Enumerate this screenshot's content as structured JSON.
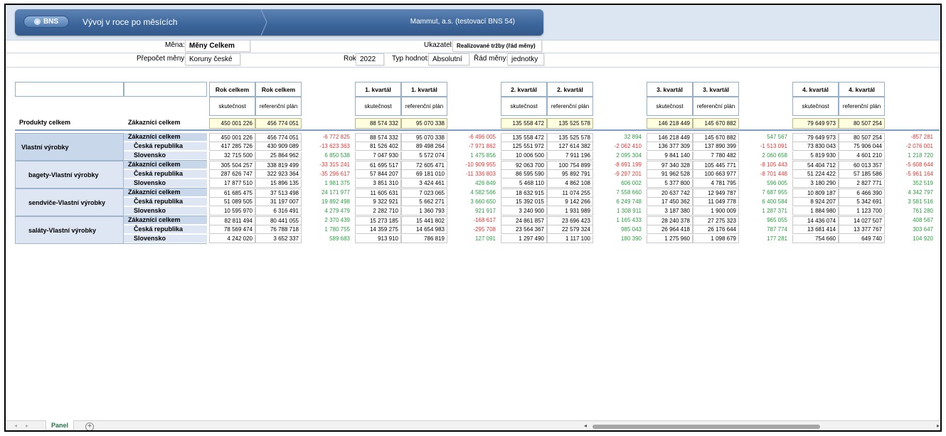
{
  "header": {
    "logo_text": "BNS",
    "title": "Vývoj v roce po měsících",
    "company": "Mammut, a.s. (testovací BNS 54)"
  },
  "params": {
    "mena_label": "Měna:",
    "mena_value": "Měny Celkem",
    "ukazatel_label": "Ukazatel:",
    "ukazatel_value": "Realizované tržby (řád měny)",
    "prepocet_label": "Přepočet měny:",
    "prepocet_value": "Koruny české",
    "rok_label": "Rok:",
    "rok_value": "2022",
    "typ_label": "Typ hodnot:",
    "typ_value": "Absolutní",
    "rad_label": "Řád měny:",
    "rad_value": "jednotky"
  },
  "periods": [
    {
      "h1": "Rok celkem",
      "h2": "Rok celkem",
      "a": "skutečnost",
      "b": "referenční plán",
      "total_a": "450 001 226",
      "total_b": "456 774 051"
    },
    {
      "h1": "1. kvartál",
      "h2": "1. kvartál",
      "a": "skutečnost",
      "b": "referenční plán",
      "total_a": "88 574 332",
      "total_b": "95 070 338"
    },
    {
      "h1": "2. kvartál",
      "h2": "2. kvartál",
      "a": "skutečnost",
      "b": "referenční plán",
      "total_a": "135 558 472",
      "total_b": "135 525 578"
    },
    {
      "h1": "3. kvartál",
      "h2": "3. kvartál",
      "a": "skutečnost",
      "b": "referenční plán",
      "total_a": "146 218 449",
      "total_b": "145 670 882"
    },
    {
      "h1": "4. kvartál",
      "h2": "4. kvartál",
      "a": "skutečnost",
      "b": "referenční plán",
      "total_a": "79 649 973",
      "total_b": "80 507 254"
    }
  ],
  "total_row": {
    "product": "Produkty celkem",
    "customer": "Zákazníci celkem"
  },
  "groups": [
    {
      "name": "Vlastní výrobky",
      "rows": [
        {
          "label": "Zákazníci celkem",
          "v": [
            [
              "450 001 226",
              "456 774 051",
              "-6 772 825"
            ],
            [
              "88 574 332",
              "95 070 338",
              "-6 496 005"
            ],
            [
              "135 558 472",
              "135 525 578",
              "32 894"
            ],
            [
              "146 218 449",
              "145 670 882",
              "547 567"
            ],
            [
              "79 649 973",
              "80 507 254",
              "-857 281"
            ]
          ]
        },
        {
          "label": "Česká republika",
          "v": [
            [
              "417 285 726",
              "430 909 089",
              "-13 623 363"
            ],
            [
              "81 526 402",
              "89 498 264",
              "-7 971 862"
            ],
            [
              "125 551 972",
              "127 614 382",
              "-2 062 410"
            ],
            [
              "136 377 309",
              "137 890 399",
              "-1 513 091"
            ],
            [
              "73 830 043",
              "75 906 044",
              "-2 076 001"
            ]
          ]
        },
        {
          "label": "Slovensko",
          "v": [
            [
              "32 715 500",
              "25 864 962",
              "6 850 538"
            ],
            [
              "7 047 930",
              "5 572 074",
              "1 475 856"
            ],
            [
              "10 006 500",
              "7 911 196",
              "2 095 304"
            ],
            [
              "9 841 140",
              "7 780 482",
              "2 060 658"
            ],
            [
              "5 819 930",
              "4 601 210",
              "1 218 720"
            ]
          ]
        }
      ]
    },
    {
      "name": "bagety-Vlastní výrobky",
      "rows": [
        {
          "label": "Zákazníci celkem",
          "v": [
            [
              "305 504 257",
              "338 819 499",
              "-33 315 241"
            ],
            [
              "61 695 517",
              "72 605 471",
              "-10 909 955"
            ],
            [
              "92 063 700",
              "100 754 899",
              "-8 691 199"
            ],
            [
              "97 340 328",
              "105 445 771",
              "-8 105 443"
            ],
            [
              "54 404 712",
              "60 013 357",
              "-5 608 644"
            ]
          ]
        },
        {
          "label": "Česká republika",
          "v": [
            [
              "287 626 747",
              "322 923 364",
              "-35 296 617"
            ],
            [
              "57 844 207",
              "69 181 010",
              "-11 336 803"
            ],
            [
              "86 595 590",
              "95 892 791",
              "-9 297 201"
            ],
            [
              "91 962 528",
              "100 663 977",
              "-8 701 448"
            ],
            [
              "51 224 422",
              "57 185 586",
              "-5 961 164"
            ]
          ]
        },
        {
          "label": "Slovensko",
          "v": [
            [
              "17 877 510",
              "15 896 135",
              "1 981 375"
            ],
            [
              "3 851 310",
              "3 424 461",
              "426 849"
            ],
            [
              "5 468 110",
              "4 862 108",
              "606 002"
            ],
            [
              "5 377 800",
              "4 781 795",
              "596 005"
            ],
            [
              "3 180 290",
              "2 827 771",
              "352 519"
            ]
          ]
        }
      ]
    },
    {
      "name": "sendviče-Vlastní výrobky",
      "rows": [
        {
          "label": "Zákazníci celkem",
          "v": [
            [
              "61 685 475",
              "37 513 498",
              "24 171 977"
            ],
            [
              "11 605 631",
              "7 023 065",
              "4 582 566"
            ],
            [
              "18 632 915",
              "11 074 255",
              "7 558 660"
            ],
            [
              "20 637 742",
              "12 949 787",
              "7 687 955"
            ],
            [
              "10 809 187",
              "6 466 390",
              "4 342 797"
            ]
          ]
        },
        {
          "label": "Česká republika",
          "v": [
            [
              "51 089 505",
              "31 197 007",
              "19 892 498"
            ],
            [
              "9 322 921",
              "5 662 271",
              "3 660 650"
            ],
            [
              "15 392 015",
              "9 142 266",
              "6 249 748"
            ],
            [
              "17 450 362",
              "11 049 778",
              "6 400 584"
            ],
            [
              "8 924 207",
              "5 342 691",
              "3 581 516"
            ]
          ]
        },
        {
          "label": "Slovensko",
          "v": [
            [
              "10 595 970",
              "6 316 491",
              "4 279 479"
            ],
            [
              "2 282 710",
              "1 360 793",
              "921 917"
            ],
            [
              "3 240 900",
              "1 931 989",
              "1 308 911"
            ],
            [
              "3 187 380",
              "1 900 009",
              "1 287 371"
            ],
            [
              "1 884 980",
              "1 123 700",
              "761 280"
            ]
          ]
        }
      ]
    },
    {
      "name": "saláty-Vlastní výrobky",
      "rows": [
        {
          "label": "Zákazníci celkem",
          "v": [
            [
              "82 811 494",
              "80 441 055",
              "2 370 439"
            ],
            [
              "15 273 185",
              "15 441 802",
              "-168 617"
            ],
            [
              "24 861 857",
              "23 696 423",
              "1 165 433"
            ],
            [
              "28 240 378",
              "27 275 323",
              "965 055"
            ],
            [
              "14 436 074",
              "14 027 507",
              "408 567"
            ]
          ]
        },
        {
          "label": "Česká republika",
          "v": [
            [
              "78 569 474",
              "76 788 718",
              "1 780 755"
            ],
            [
              "14 359 275",
              "14 654 983",
              "-295 708"
            ],
            [
              "23 564 367",
              "22 579 324",
              "985 043"
            ],
            [
              "26 964 418",
              "26 176 644",
              "787 774"
            ],
            [
              "13 681 414",
              "13 377 767",
              "303 647"
            ]
          ]
        },
        {
          "label": "Slovensko",
          "v": [
            [
              "4 242 020",
              "3 652 337",
              "589 683"
            ],
            [
              "913 910",
              "786 819",
              "127 091"
            ],
            [
              "1 297 490",
              "1 117 100",
              "180 390"
            ],
            [
              "1 275 960",
              "1 098 679",
              "177 281"
            ],
            [
              "754 660",
              "649 740",
              "104 920"
            ]
          ]
        }
      ]
    }
  ],
  "tabs": {
    "nav_prev": "◂",
    "nav_next": "▸",
    "sheet": "Panel",
    "add": "+"
  },
  "scroll": {
    "left": "◂",
    "right": "▸"
  }
}
